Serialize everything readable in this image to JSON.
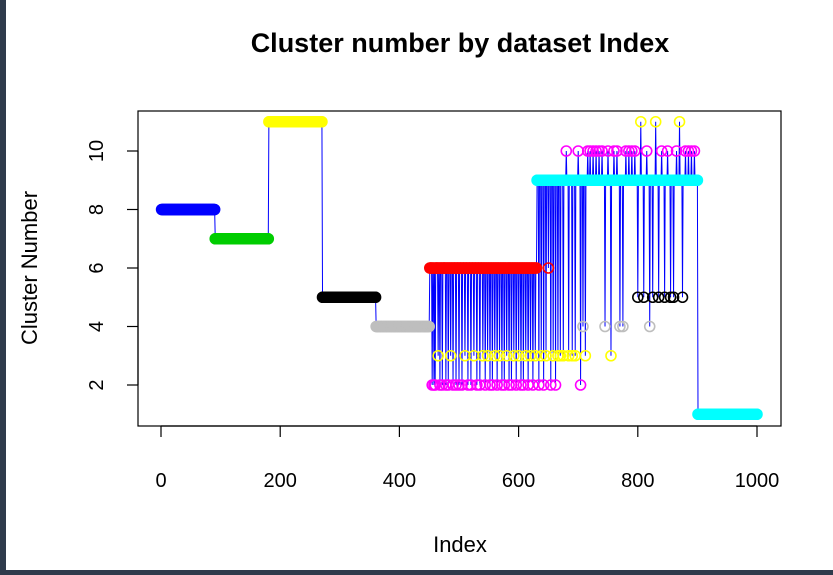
{
  "chart_data": {
    "type": "scatter",
    "title": "Cluster number by dataset Index",
    "xlabel": "Index",
    "ylabel": "Cluster Number",
    "xlim": [
      0,
      1000
    ],
    "ylim": [
      1,
      11
    ],
    "xticks": [
      "0",
      "200",
      "400",
      "600",
      "800",
      "1000"
    ],
    "yticks": [
      "2",
      "4",
      "6",
      "8",
      "10"
    ],
    "grid": false,
    "legend": "none",
    "connector_color": "#0000ff",
    "cluster_colors": {
      "1": "#00ffff",
      "2": "#ff00ff",
      "3": "#ffff00",
      "4": "#bebebe",
      "5": "#000000",
      "6": "#ff0000",
      "7": "#00cd00",
      "8": "#0000ff",
      "9": "#00ffff",
      "10": "#ff00ff",
      "11": "#ffff00"
    },
    "segments": [
      {
        "x_start": 1,
        "x_end": 90,
        "cluster": 8
      },
      {
        "x_start": 91,
        "x_end": 180,
        "cluster": 7
      },
      {
        "x_start": 181,
        "x_end": 270,
        "cluster": 11
      },
      {
        "x_start": 271,
        "x_end": 360,
        "cluster": 5
      },
      {
        "x_start": 361,
        "x_end": 450,
        "cluster": 4
      },
      {
        "x_start": 451,
        "x_end": 630,
        "cluster": 6,
        "outliers": [
          {
            "x": 455,
            "cluster": 2
          },
          {
            "x": 458,
            "cluster": 2
          },
          {
            "x": 460,
            "cluster": 2
          },
          {
            "x": 465,
            "cluster": 3
          },
          {
            "x": 468,
            "cluster": 2
          },
          {
            "x": 472,
            "cluster": 2
          },
          {
            "x": 478,
            "cluster": 2
          },
          {
            "x": 482,
            "cluster": 2
          },
          {
            "x": 486,
            "cluster": 3
          },
          {
            "x": 490,
            "cluster": 2
          },
          {
            "x": 495,
            "cluster": 2
          },
          {
            "x": 500,
            "cluster": 2
          },
          {
            "x": 505,
            "cluster": 2
          },
          {
            "x": 510,
            "cluster": 3
          },
          {
            "x": 515,
            "cluster": 2
          },
          {
            "x": 520,
            "cluster": 2
          },
          {
            "x": 525,
            "cluster": 3
          },
          {
            "x": 530,
            "cluster": 2
          },
          {
            "x": 535,
            "cluster": 2
          },
          {
            "x": 540,
            "cluster": 3
          },
          {
            "x": 544,
            "cluster": 2
          },
          {
            "x": 548,
            "cluster": 3
          },
          {
            "x": 552,
            "cluster": 2
          },
          {
            "x": 556,
            "cluster": 2
          },
          {
            "x": 560,
            "cluster": 3
          },
          {
            "x": 564,
            "cluster": 2
          },
          {
            "x": 568,
            "cluster": 3
          },
          {
            "x": 572,
            "cluster": 2
          },
          {
            "x": 576,
            "cluster": 2
          },
          {
            "x": 580,
            "cluster": 3
          },
          {
            "x": 584,
            "cluster": 2
          },
          {
            "x": 588,
            "cluster": 2
          },
          {
            "x": 592,
            "cluster": 3
          },
          {
            "x": 596,
            "cluster": 2
          },
          {
            "x": 600,
            "cluster": 3
          },
          {
            "x": 604,
            "cluster": 2
          },
          {
            "x": 608,
            "cluster": 2
          },
          {
            "x": 612,
            "cluster": 3
          },
          {
            "x": 616,
            "cluster": 2
          },
          {
            "x": 620,
            "cluster": 3
          },
          {
            "x": 624,
            "cluster": 2
          },
          {
            "x": 628,
            "cluster": 3
          }
        ]
      },
      {
        "x_start": 631,
        "x_end": 900,
        "cluster": 9,
        "outliers": [
          {
            "x": 634,
            "cluster": 2
          },
          {
            "x": 638,
            "cluster": 3
          },
          {
            "x": 642,
            "cluster": 2
          },
          {
            "x": 646,
            "cluster": 3
          },
          {
            "x": 650,
            "cluster": 6
          },
          {
            "x": 654,
            "cluster": 2
          },
          {
            "x": 658,
            "cluster": 3
          },
          {
            "x": 662,
            "cluster": 2
          },
          {
            "x": 666,
            "cluster": 3
          },
          {
            "x": 670,
            "cluster": 3
          },
          {
            "x": 675,
            "cluster": 3
          },
          {
            "x": 680,
            "cluster": 10
          },
          {
            "x": 684,
            "cluster": 3
          },
          {
            "x": 690,
            "cluster": 3
          },
          {
            "x": 695,
            "cluster": 3
          },
          {
            "x": 700,
            "cluster": 10
          },
          {
            "x": 704,
            "cluster": 2
          },
          {
            "x": 708,
            "cluster": 4
          },
          {
            "x": 712,
            "cluster": 3
          },
          {
            "x": 716,
            "cluster": 10
          },
          {
            "x": 720,
            "cluster": 10
          },
          {
            "x": 725,
            "cluster": 10
          },
          {
            "x": 730,
            "cluster": 10
          },
          {
            "x": 735,
            "cluster": 10
          },
          {
            "x": 740,
            "cluster": 10
          },
          {
            "x": 745,
            "cluster": 4
          },
          {
            "x": 750,
            "cluster": 10
          },
          {
            "x": 755,
            "cluster": 3
          },
          {
            "x": 760,
            "cluster": 10
          },
          {
            "x": 765,
            "cluster": 10
          },
          {
            "x": 770,
            "cluster": 4
          },
          {
            "x": 775,
            "cluster": 4
          },
          {
            "x": 780,
            "cluster": 10
          },
          {
            "x": 785,
            "cluster": 10
          },
          {
            "x": 790,
            "cluster": 10
          },
          {
            "x": 795,
            "cluster": 10
          },
          {
            "x": 800,
            "cluster": 5
          },
          {
            "x": 805,
            "cluster": 11
          },
          {
            "x": 810,
            "cluster": 5
          },
          {
            "x": 815,
            "cluster": 10
          },
          {
            "x": 820,
            "cluster": 4
          },
          {
            "x": 825,
            "cluster": 5
          },
          {
            "x": 830,
            "cluster": 11
          },
          {
            "x": 835,
            "cluster": 5
          },
          {
            "x": 840,
            "cluster": 10
          },
          {
            "x": 845,
            "cluster": 5
          },
          {
            "x": 850,
            "cluster": 10
          },
          {
            "x": 855,
            "cluster": 5
          },
          {
            "x": 860,
            "cluster": 5
          },
          {
            "x": 865,
            "cluster": 10
          },
          {
            "x": 870,
            "cluster": 11
          },
          {
            "x": 875,
            "cluster": 5
          },
          {
            "x": 880,
            "cluster": 10
          },
          {
            "x": 885,
            "cluster": 10
          },
          {
            "x": 890,
            "cluster": 10
          },
          {
            "x": 895,
            "cluster": 10
          }
        ]
      },
      {
        "x_start": 901,
        "x_end": 1000,
        "cluster": 1
      }
    ]
  }
}
